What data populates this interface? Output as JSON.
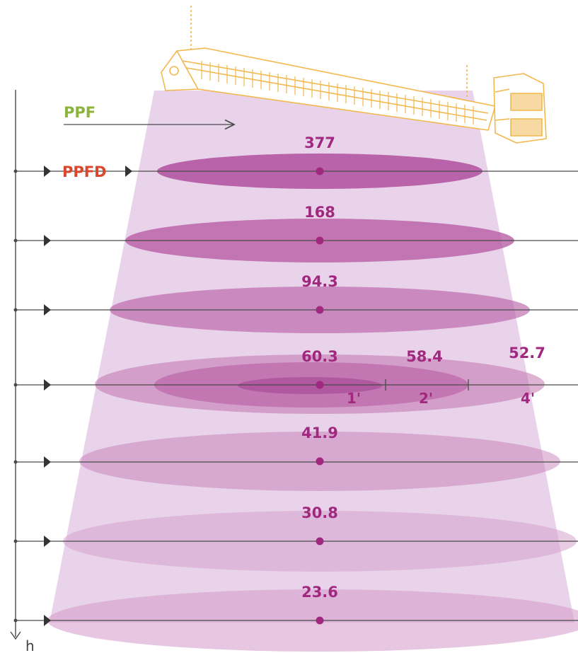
{
  "labels": {
    "ppf": "PPF",
    "ppfd": "PPFD",
    "axis": "h"
  },
  "ppfd_levels": [
    {
      "value": "377"
    },
    {
      "value": "168"
    },
    {
      "value": "94.3"
    },
    {
      "value": "60.3"
    },
    {
      "value": "41.9"
    },
    {
      "value": "30.8"
    },
    {
      "value": "23.6"
    }
  ],
  "offset_readings": [
    {
      "value": "58.4",
      "distance": "2'"
    },
    {
      "value": "52.7",
      "distance": "4'"
    }
  ],
  "center_distance": "1'",
  "colors": {
    "ppf": "#8cb43a",
    "ppfd": "#d9472f",
    "value_text": "#a0297f",
    "beam": "#e9d3ea",
    "disc": "#b0509f",
    "fixture": "#f2b84d",
    "line": "#4a4a4a"
  },
  "icons": {
    "fixture": "led-grow-light-fixture-icon"
  }
}
